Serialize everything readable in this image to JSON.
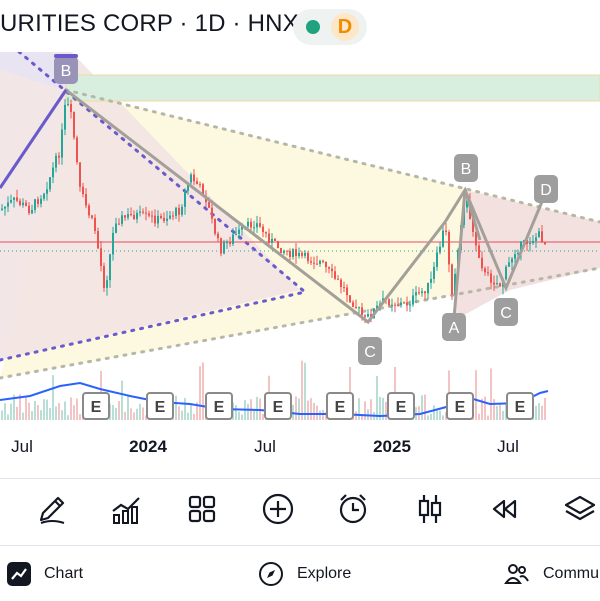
{
  "header": {
    "title": "URITIES CORP · 1D · HNX",
    "delay_badge": "D",
    "status_color": "#1fa37e"
  },
  "chart_data": {
    "type": "candlestick",
    "x_tick_labels": [
      "Jul",
      "2024",
      "Jul",
      "2025",
      "Jul"
    ],
    "pattern_points": [
      "B",
      "C",
      "B",
      "A",
      "C",
      "D"
    ],
    "event_markers": [
      "E",
      "E",
      "E",
      "E",
      "E",
      "E",
      "E",
      "E"
    ],
    "colors": {
      "up": "#26a69a",
      "down": "#ef5350",
      "pattern_line": "#a39f99",
      "current_price_line": "#e34d66",
      "volume_line": "#2962ff",
      "triangle_dots": "#b7b7a8",
      "wedge_dots": "#6a5acd",
      "resistance_zone": "#d8efe0"
    }
  },
  "toolbar": {
    "items": [
      "pencil-icon",
      "indicators-icon",
      "layout-icon",
      "add-icon",
      "alarm-icon",
      "candles-icon",
      "replay-icon",
      "layers-icon"
    ]
  },
  "nav": {
    "chart_label": "Chart",
    "explore_label": "Explore",
    "community_label": "Commu"
  }
}
